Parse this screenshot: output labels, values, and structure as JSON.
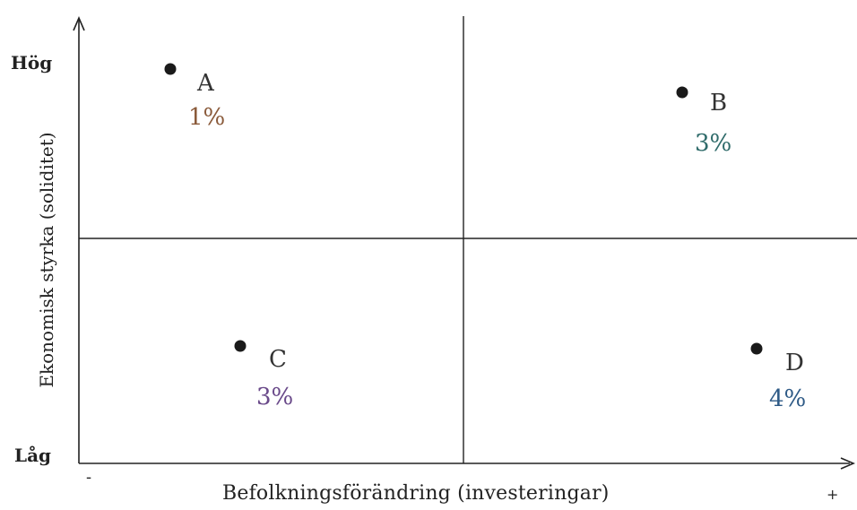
{
  "axes": {
    "y_high_label": "Hög",
    "y_low_label": "Låg",
    "y_title": "Ekonomisk styrka (soliditet)",
    "x_minus_label": "-",
    "x_plus_label": "+",
    "x_title": "Befolkningsförändring (investeringar)"
  },
  "points": [
    {
      "name": "A",
      "value": "1%",
      "value_color": "#8a5a3a"
    },
    {
      "name": "B",
      "value": "3%",
      "value_color": "#2f6b6a"
    },
    {
      "name": "C",
      "value": "3%",
      "value_color": "#6a4a8a"
    },
    {
      "name": "D",
      "value": "4%",
      "value_color": "#2e5a86"
    }
  ]
}
